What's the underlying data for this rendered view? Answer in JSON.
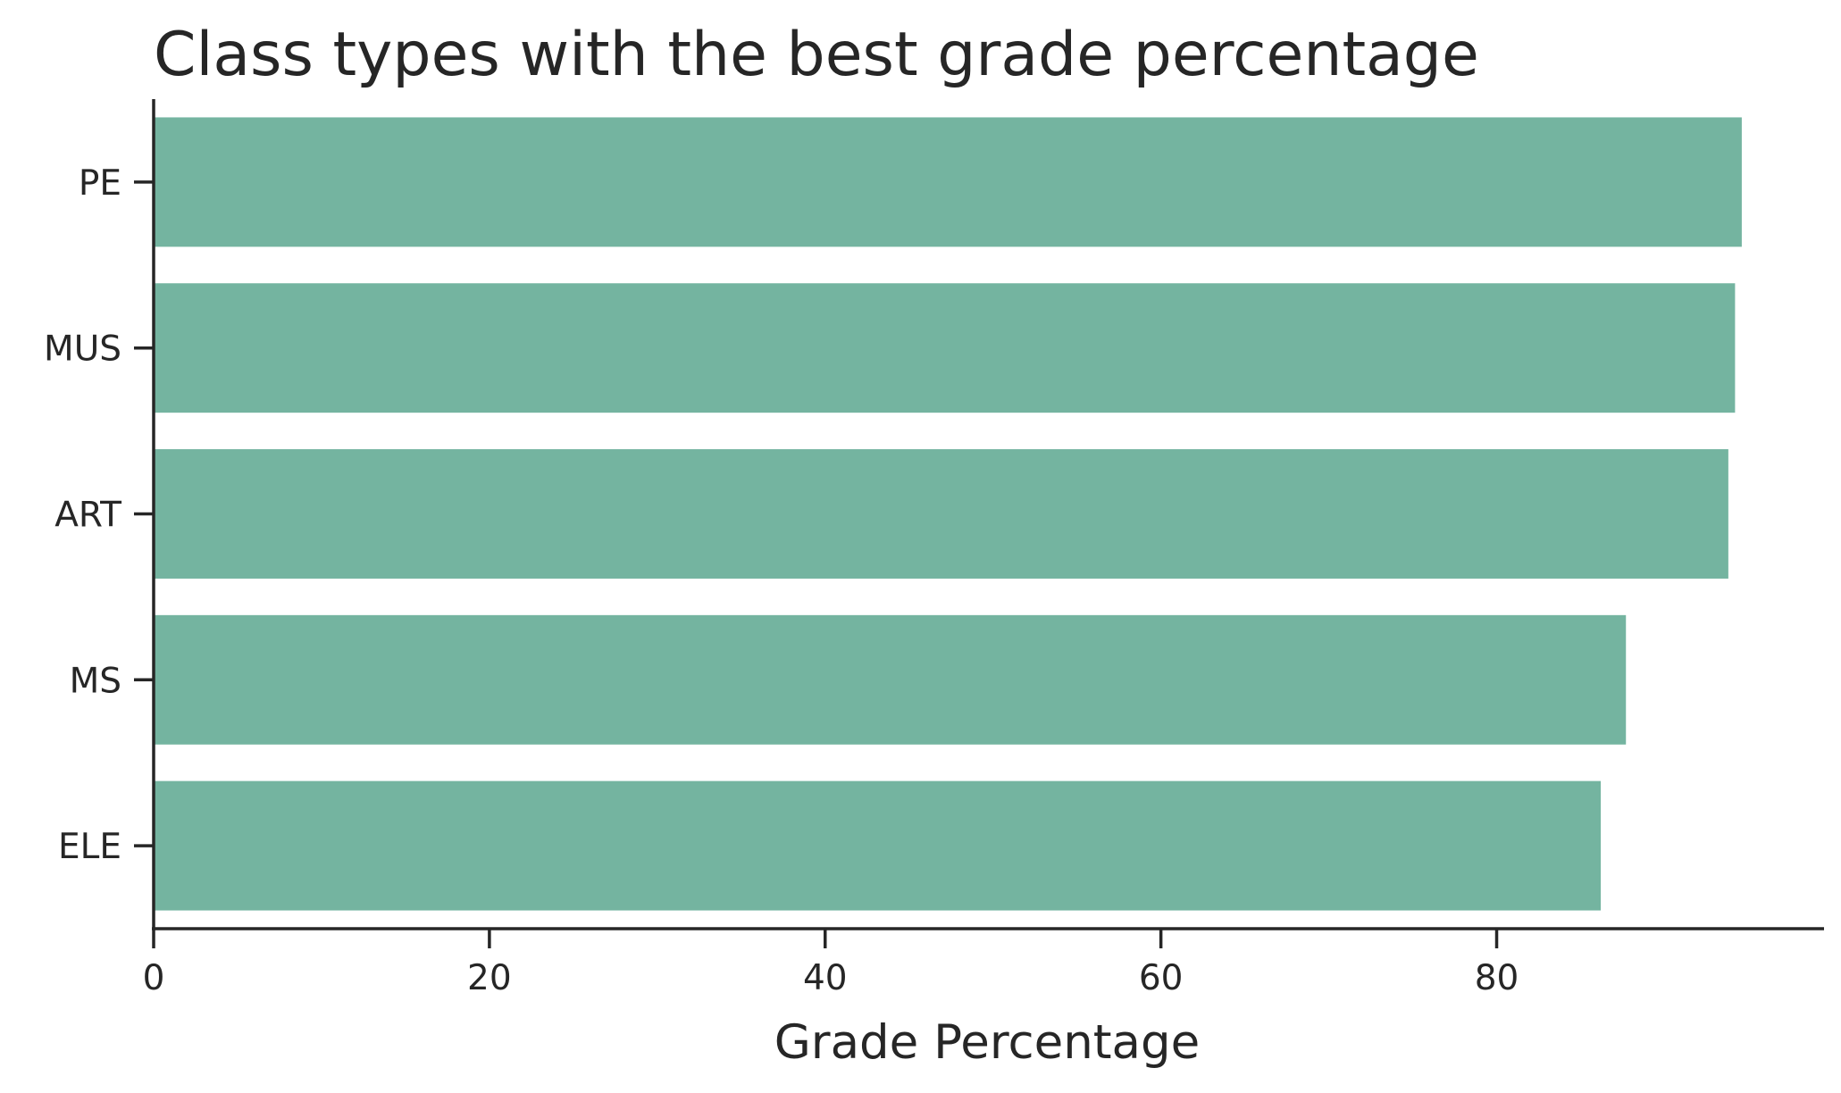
{
  "chart_data": {
    "type": "bar",
    "orientation": "horizontal",
    "title": "Class types with the best grade percentage",
    "xlabel": "Grade Percentage",
    "ylabel": "",
    "categories": [
      "PE",
      "MUS",
      "ART",
      "MS",
      "ELE"
    ],
    "values": [
      94.6,
      94.2,
      93.8,
      87.7,
      86.2
    ],
    "xlim": [
      0,
      99.5
    ],
    "xticks": [
      "0",
      "20",
      "40",
      "60",
      "80"
    ],
    "grid": false,
    "legend": "none",
    "colors": {
      "bar": "#74b4a0",
      "axis": "#262626",
      "text": "#262626",
      "background": "#ffffff"
    }
  }
}
